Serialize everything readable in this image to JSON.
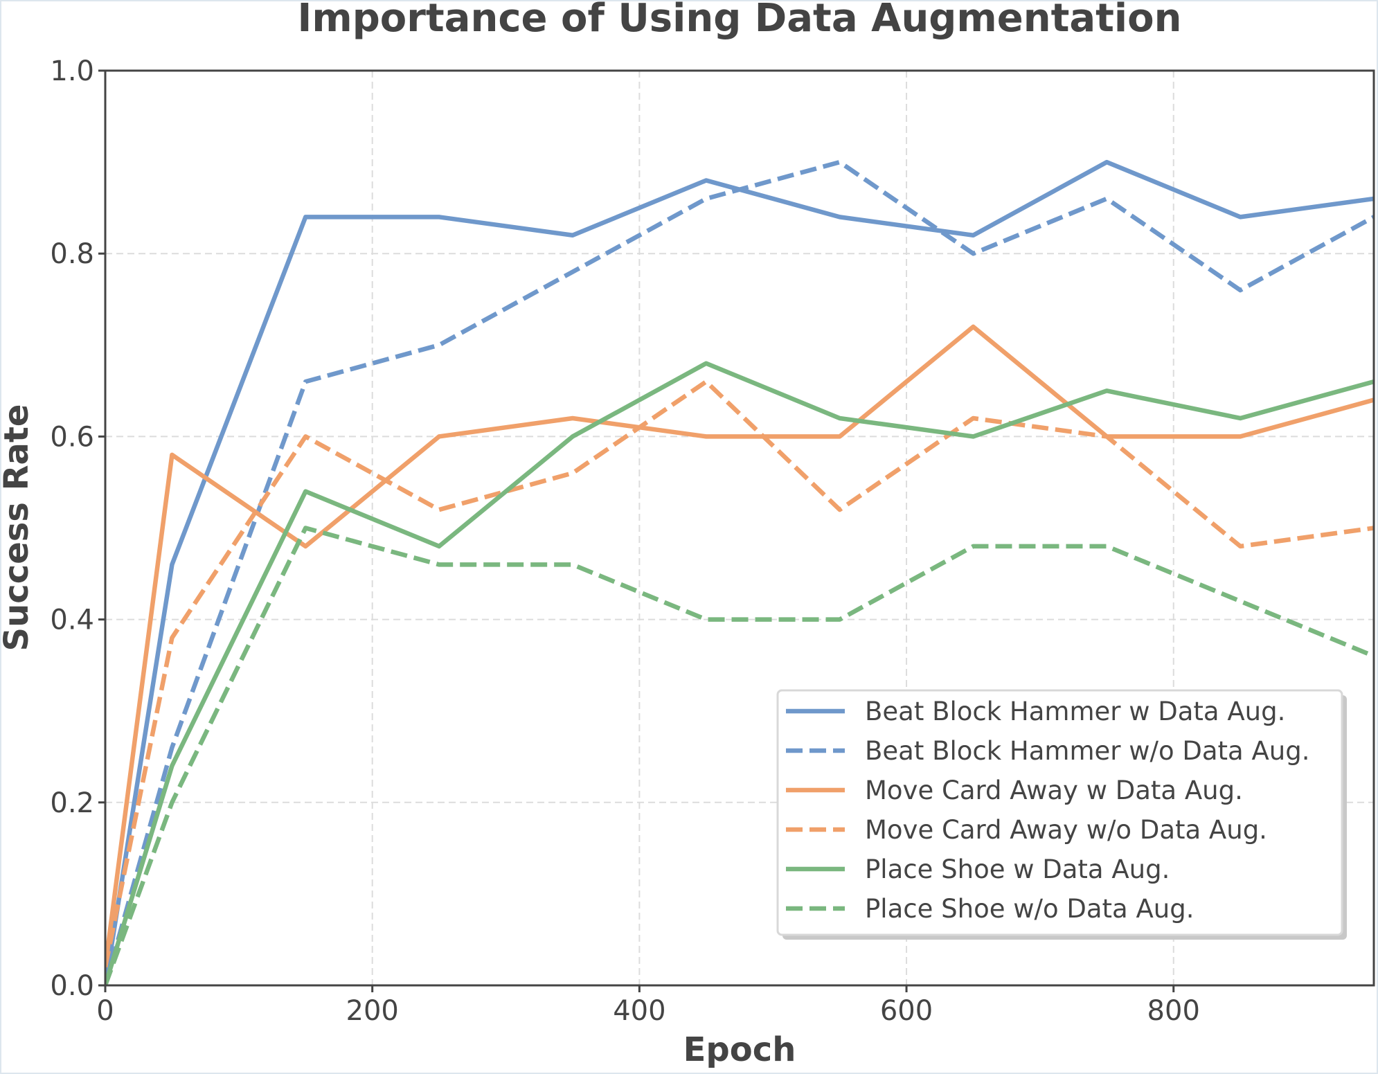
{
  "chart_data": {
    "type": "line",
    "title": "Importance of Using Data Augmentation",
    "xlabel": "Epoch",
    "ylabel": "Success Rate",
    "xlim": [
      0,
      950
    ],
    "ylim": [
      0,
      1.0
    ],
    "xticks": [
      "0",
      "200",
      "400",
      "600",
      "800"
    ],
    "xtick_values": [
      0,
      200,
      400,
      600,
      800
    ],
    "yticks": [
      "0.0",
      "0.2",
      "0.4",
      "0.6",
      "0.8",
      "1.0"
    ],
    "ytick_values": [
      0,
      0.2,
      0.4,
      0.6,
      0.8,
      1.0
    ],
    "grid": true,
    "legend_position": "lower-right",
    "x": [
      0,
      50,
      150,
      250,
      350,
      450,
      550,
      650,
      750,
      850,
      950
    ],
    "series": [
      {
        "name": "Beat Block Hammer w Data Aug.",
        "color": "#6f98cb",
        "dashed": false,
        "values": [
          0.0,
          0.46,
          0.84,
          0.84,
          0.82,
          0.88,
          0.84,
          0.82,
          0.9,
          0.84,
          0.86
        ]
      },
      {
        "name": "Beat Block Hammer w/o Data Aug.",
        "color": "#6f98cb",
        "dashed": true,
        "values": [
          0.0,
          0.26,
          0.66,
          0.7,
          0.78,
          0.86,
          0.9,
          0.8,
          0.86,
          0.76,
          0.84
        ]
      },
      {
        "name": "Move Card Away w Data Aug.",
        "color": "#f0a06a",
        "dashed": false,
        "values": [
          0.02,
          0.58,
          0.48,
          0.6,
          0.62,
          0.6,
          0.6,
          0.72,
          0.6,
          0.6,
          0.64
        ]
      },
      {
        "name": "Move Card Away w/o Data Aug.",
        "color": "#f0a06a",
        "dashed": true,
        "values": [
          0.02,
          0.38,
          0.6,
          0.52,
          0.56,
          0.66,
          0.52,
          0.62,
          0.6,
          0.48,
          0.5
        ]
      },
      {
        "name": "Place Shoe w Data Aug.",
        "color": "#7ab77f",
        "dashed": false,
        "values": [
          0.0,
          0.24,
          0.54,
          0.48,
          0.6,
          0.68,
          0.62,
          0.6,
          0.65,
          0.62,
          0.66
        ]
      },
      {
        "name": "Place Shoe w/o Data Aug.",
        "color": "#7ab77f",
        "dashed": true,
        "values": [
          0.0,
          0.2,
          0.5,
          0.46,
          0.46,
          0.4,
          0.4,
          0.48,
          0.48,
          0.42,
          0.36
        ]
      }
    ]
  }
}
